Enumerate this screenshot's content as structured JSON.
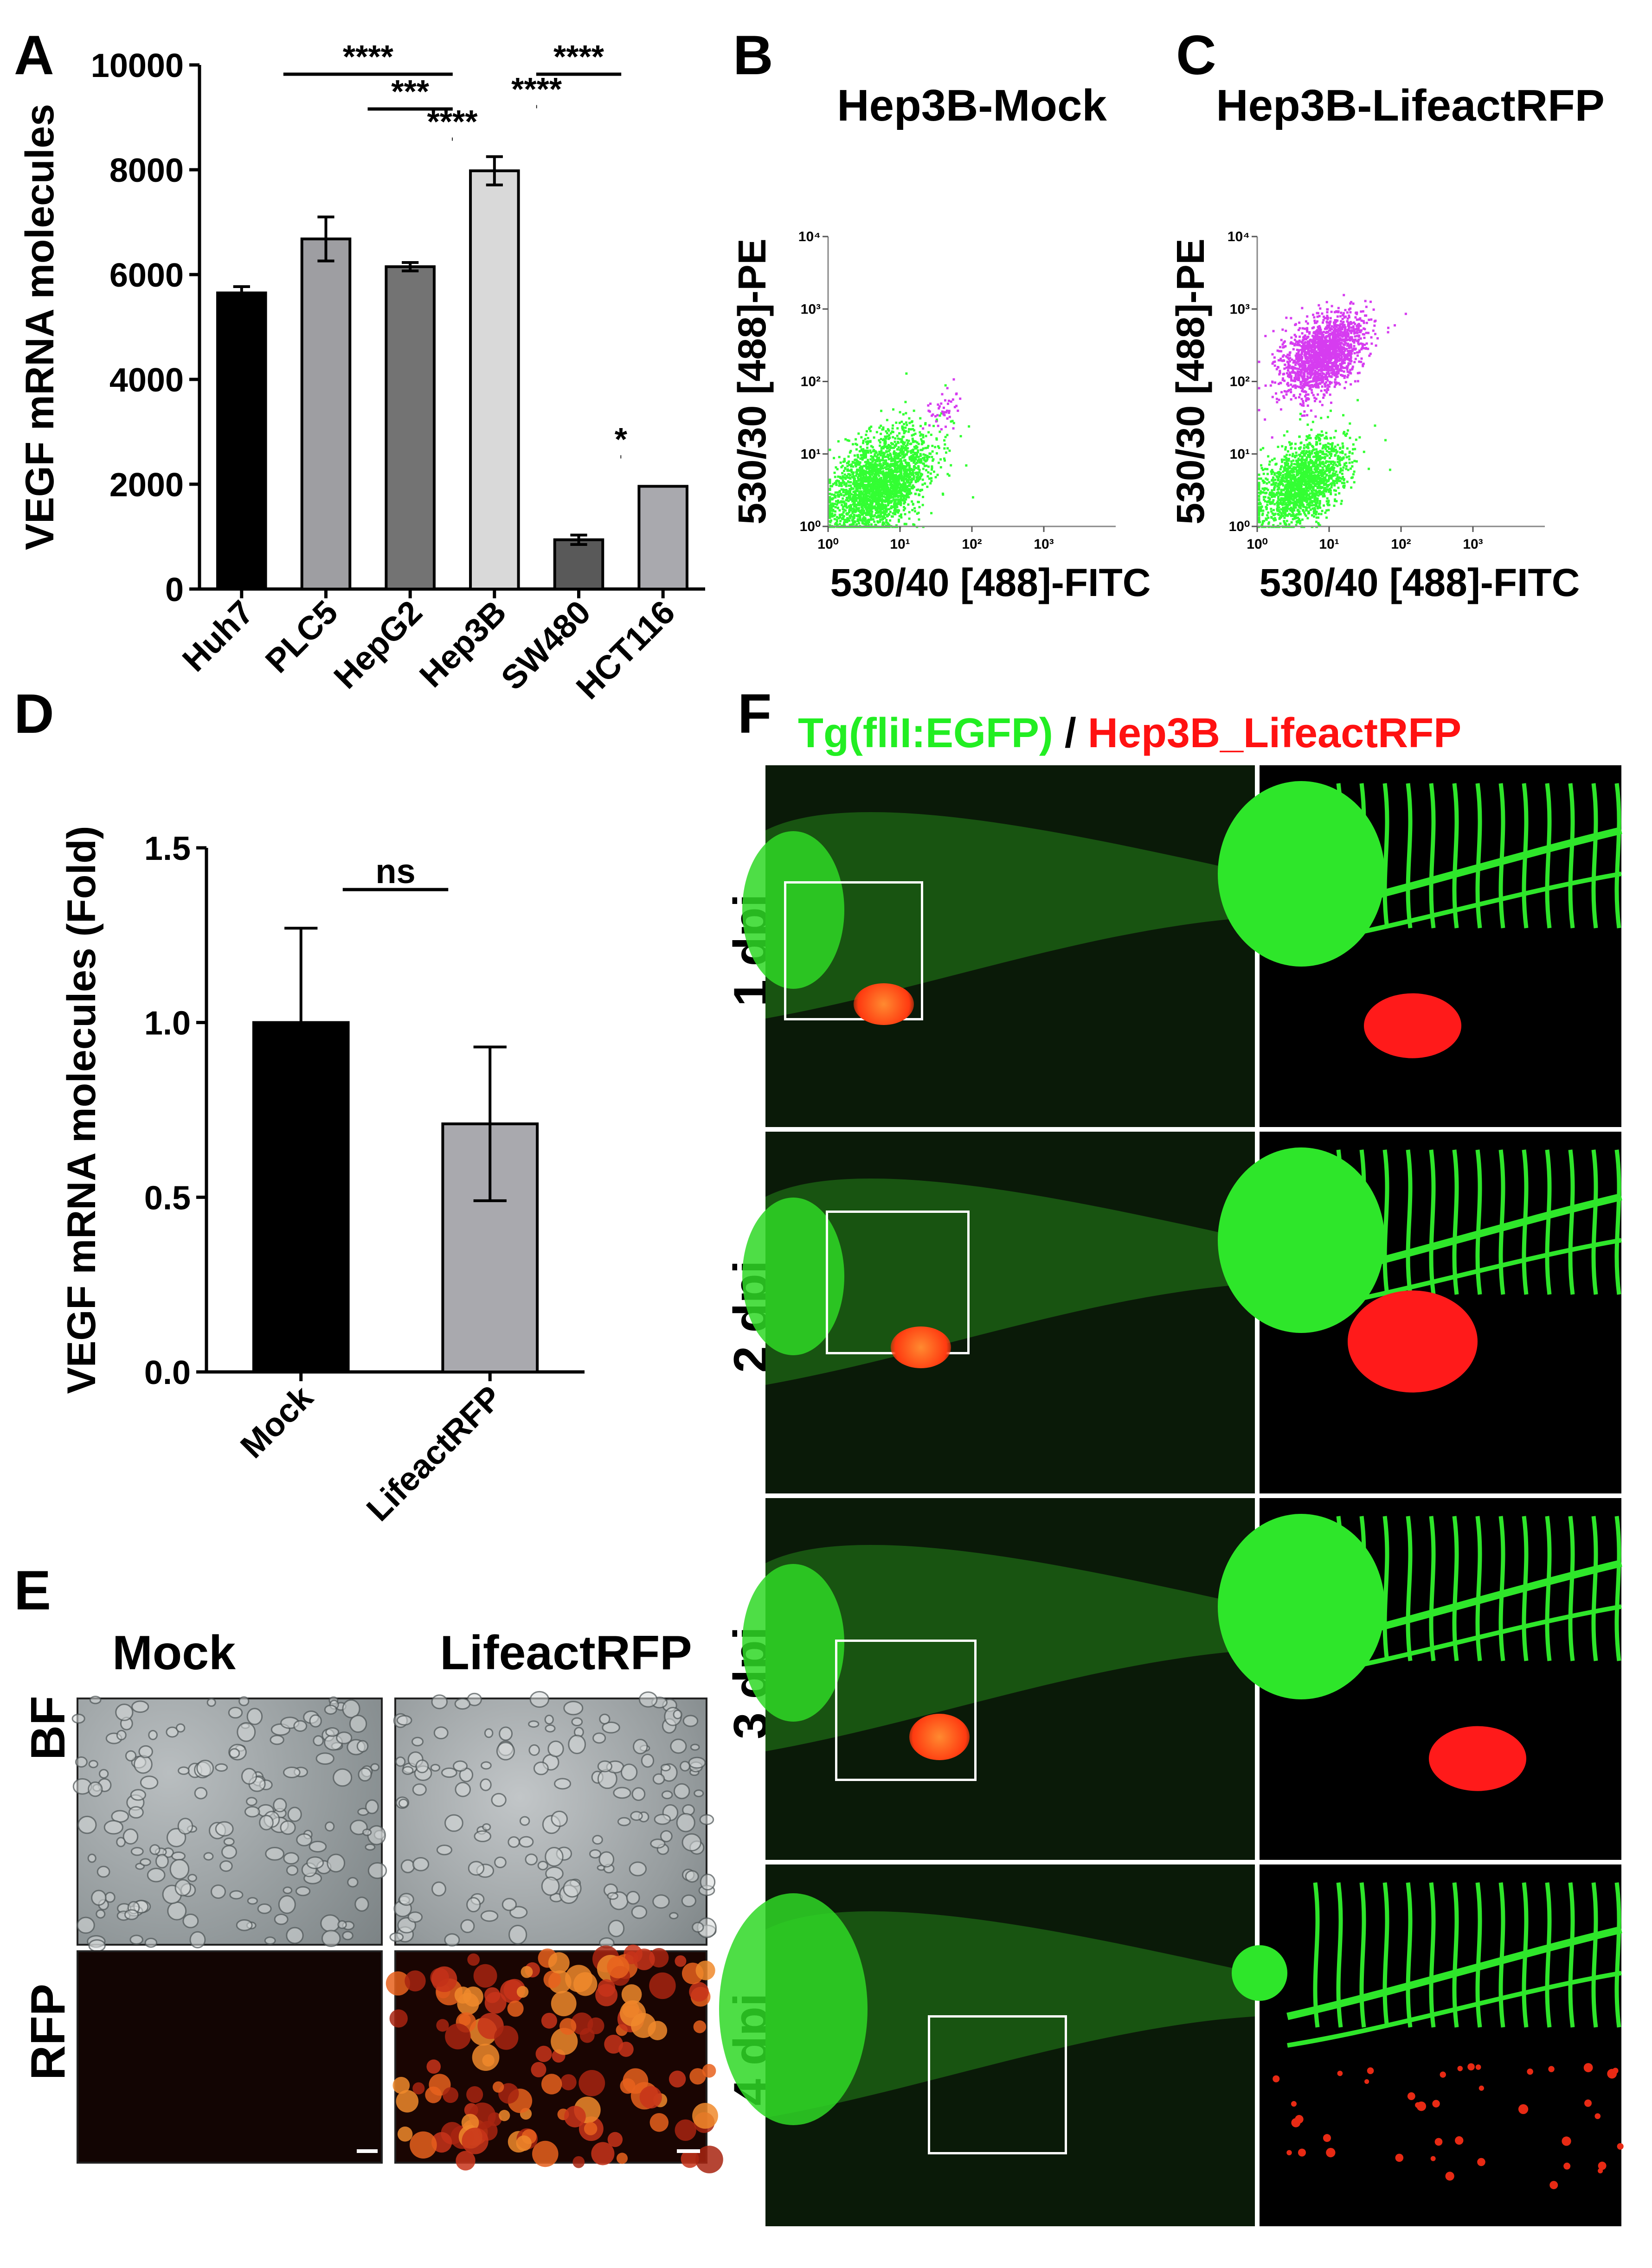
{
  "panels": {
    "A": "A",
    "B": "B",
    "C": "C",
    "D": "D",
    "E": "E",
    "F": "F"
  },
  "chart_data": [
    {
      "panel": "A",
      "type": "bar",
      "categories": [
        "Huh7",
        "PLC5",
        "HepG2",
        "Hep3B",
        "SW480",
        "HCT116"
      ],
      "values": [
        5650,
        6680,
        6150,
        7980,
        940,
        1960
      ],
      "errors": [
        120,
        420,
        80,
        270,
        90,
        0
      ],
      "bar_colors": [
        "#000000",
        "#9e9ea2",
        "#737373",
        "#d9d9d9",
        "#595959",
        "#a9a9ae"
      ],
      "ylabel": "VEGF mRNA molecules",
      "ylim": [
        0,
        10000
      ],
      "yticks": [
        0,
        2000,
        4000,
        6000,
        8000,
        10000
      ],
      "significance": [
        {
          "from": "Huh7",
          "to": "Hep3B",
          "label": "****"
        },
        {
          "from": "PLC5",
          "to": "Hep3B",
          "label": "***"
        },
        {
          "from": "HepG2",
          "to": "Hep3B",
          "label": "****"
        },
        {
          "from": "Hep3B",
          "to": "HCT116",
          "label": "****"
        },
        {
          "from": "Hep3B",
          "to": "SW480",
          "label": "****"
        },
        {
          "from": "SW480",
          "to": "HCT116",
          "label": "*"
        }
      ]
    },
    {
      "panel": "B",
      "type": "scatter",
      "title": "Hep3B-Mock",
      "xlabel": "530/40 [488]-FITC",
      "ylabel": "530/30 [488]-PE",
      "scale": "log",
      "xlim": [
        1,
        10000
      ],
      "ylim": [
        1,
        10000
      ],
      "ticks": [
        "10⁰",
        "10¹",
        "10²",
        "10³",
        "10⁴"
      ],
      "populations": [
        {
          "color": "#33ff33",
          "center": [
            5,
            4
          ],
          "spread": 0.35,
          "count": 2600
        },
        {
          "color": "#d63cf0",
          "center": [
            40,
            45
          ],
          "spread": 0.15,
          "count": 45
        }
      ]
    },
    {
      "panel": "C",
      "type": "scatter",
      "title": "Hep3B-LifeactRFP",
      "xlabel": "530/40 [488]-FITC",
      "ylabel": "530/30 [488]-PE",
      "scale": "log",
      "xlim": [
        1,
        10000
      ],
      "ylim": [
        1,
        10000
      ],
      "ticks": [
        "10⁰",
        "10¹",
        "10²",
        "10³",
        "10⁴"
      ],
      "populations": [
        {
          "color": "#33ff33",
          "center": [
            4,
            4
          ],
          "spread": 0.3,
          "count": 1800
        },
        {
          "color": "#d63cf0",
          "center": [
            8,
            250
          ],
          "spread": 0.28,
          "count": 1800
        }
      ]
    },
    {
      "panel": "D",
      "type": "bar",
      "categories": [
        "Mock",
        "LifeactRFP"
      ],
      "values": [
        1.0,
        0.71
      ],
      "errors": [
        0.27,
        0.22
      ],
      "bar_colors": [
        "#000000",
        "#a9a9ae"
      ],
      "ylabel": "VEGF mRNA molecules (Fold)",
      "ylim": [
        0,
        1.5
      ],
      "yticks": [
        "0.0",
        "0.5",
        "1.0",
        "1.5"
      ],
      "significance": [
        {
          "from": "Mock",
          "to": "LifeactRFP",
          "label": "ns"
        }
      ]
    }
  ],
  "panel_e": {
    "columns": [
      "Mock",
      "LifeactRFP"
    ],
    "rows": [
      "BF",
      "RFP"
    ]
  },
  "panel_f": {
    "title_green": "Tg(fliI:EGFP)",
    "title_sep": " / ",
    "title_red": "Hep3B_LifeactRFP",
    "rows": [
      "1 dpi",
      "2 dpi",
      "3 dpi",
      "4 dpi"
    ]
  },
  "colors": {
    "green": "#22ee22",
    "red": "#ff1111",
    "magenta": "#d63cf0"
  }
}
